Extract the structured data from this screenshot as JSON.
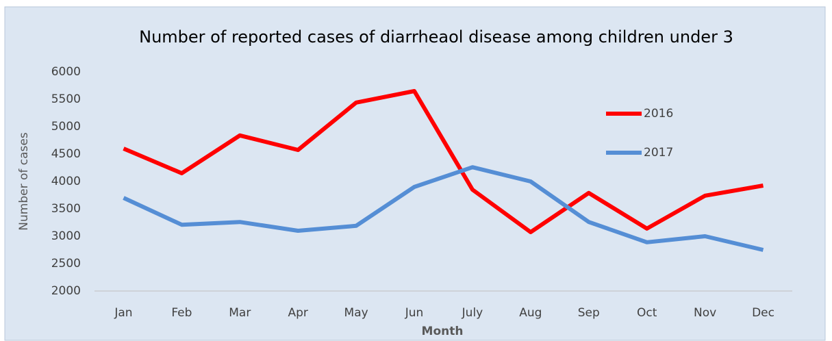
{
  "chart_data": {
    "type": "line",
    "title": "Number of reported cases of diarrheaol disease among children under 3",
    "xlabel": "Month",
    "ylabel": "Number of cases",
    "categories": [
      "Jan",
      "Feb",
      "Mar",
      "Apr",
      "May",
      "Jun",
      "July",
      "Aug",
      "Sep",
      "Oct",
      "Nov",
      "Dec"
    ],
    "series": [
      {
        "name": "2016",
        "color": "#ff0000",
        "values": [
          4600,
          4150,
          4840,
          4575,
          5440,
          5650,
          3850,
          3075,
          3790,
          3140,
          3740,
          3925
        ]
      },
      {
        "name": "2017",
        "color": "#558ed5",
        "values": [
          3700,
          3210,
          3260,
          3100,
          3190,
          3900,
          4260,
          4000,
          3260,
          2890,
          3000,
          2750
        ]
      }
    ],
    "ylim": [
      2000,
      6000
    ],
    "yticks": [
      2000,
      2500,
      3000,
      3500,
      4000,
      4500,
      5000,
      5500,
      6000
    ],
    "grid": false,
    "legend": "upper right"
  }
}
